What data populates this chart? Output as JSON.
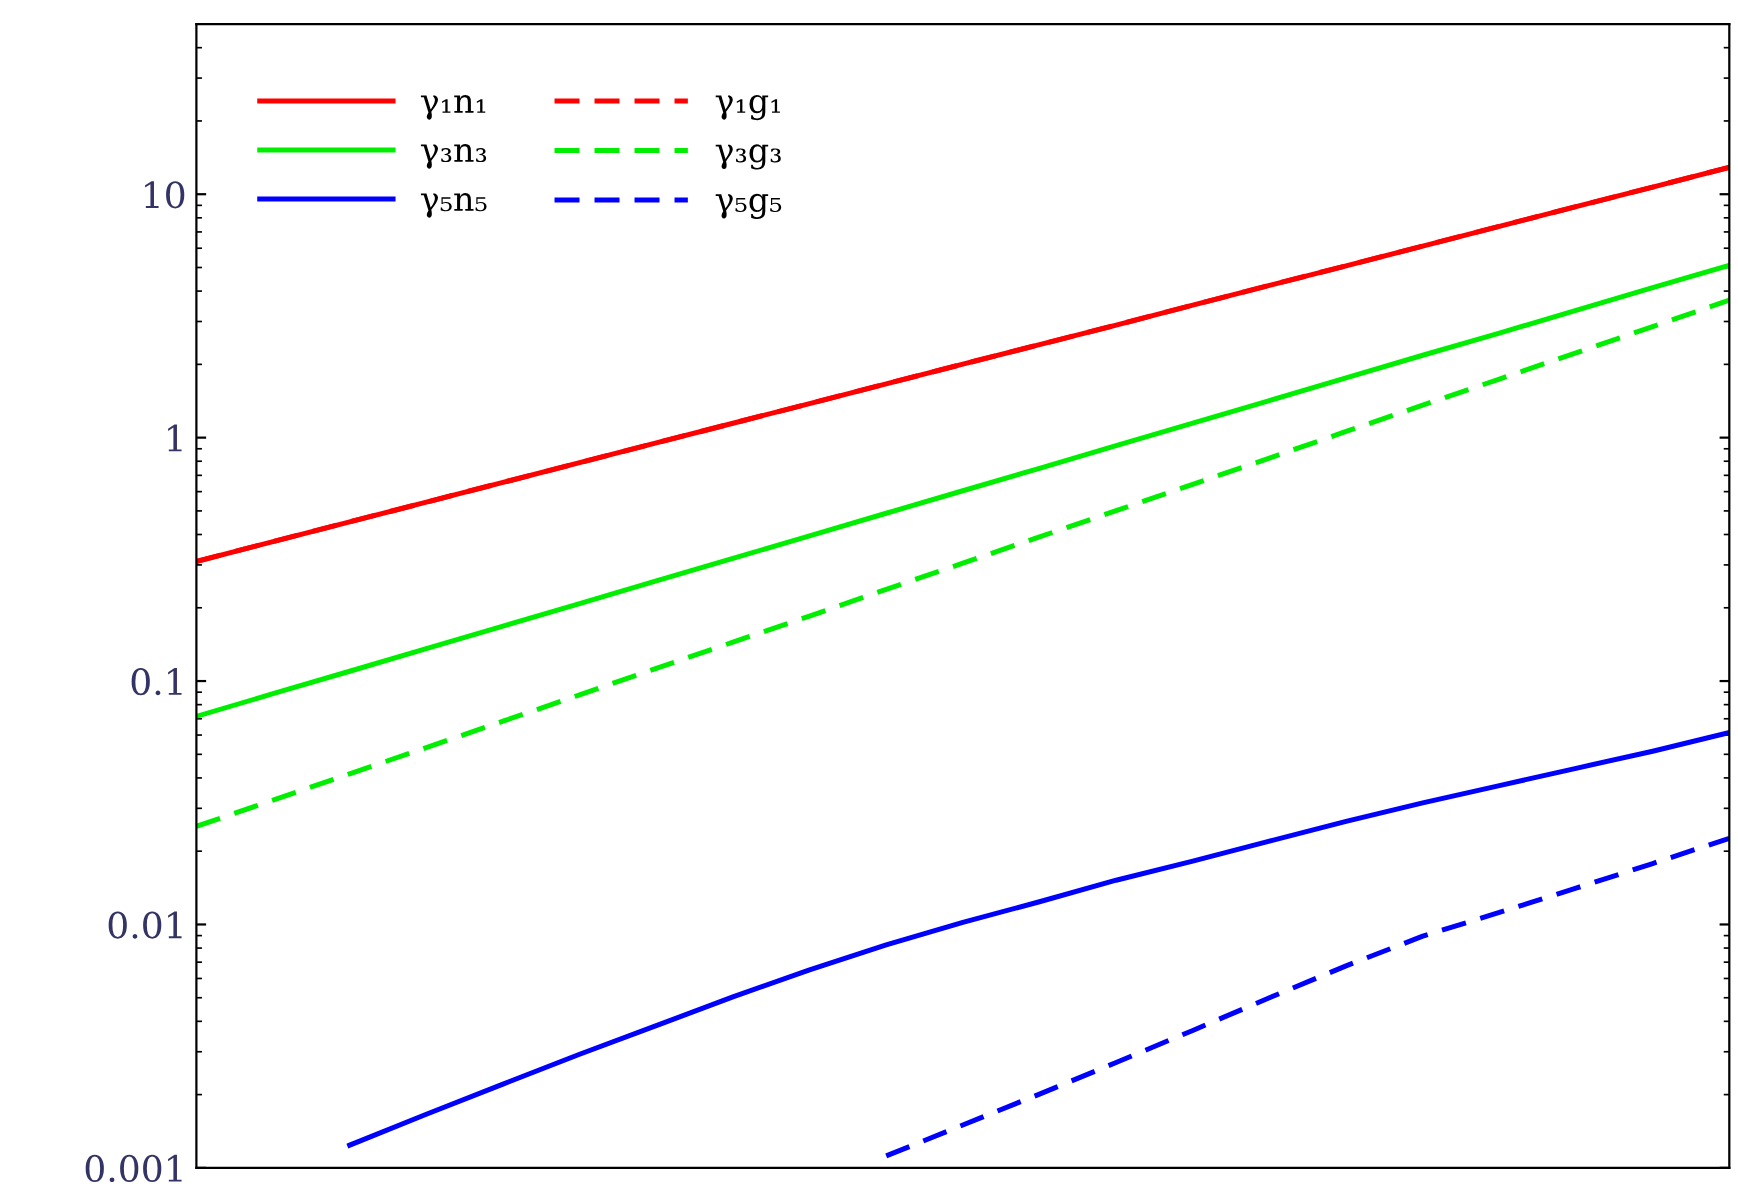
{
  "chart_data": {
    "type": "line",
    "log": "y",
    "tick_labels": "y",
    "grid": false,
    "legend": "top left",
    "marker": "none",
    "categories": [
      null,
      null,
      null,
      null,
      null,
      null,
      null,
      null,
      null,
      null,
      null,
      null,
      null,
      null,
      null,
      null,
      null,
      null,
      null,
      null,
      null
    ],
    "ylim": [
      0.001,
      50
    ],
    "yticks": [
      {
        "value": 0.001,
        "label": "0.001"
      },
      {
        "value": 0.01,
        "label": "0.01"
      },
      {
        "value": 0.1,
        "label": "0.1"
      },
      1,
      10
    ],
    "series": [
      {
        "name": "γ₁n₁",
        "color": "#ff0000",
        "line_style": "solid",
        "values": [
          0.31,
          0.374,
          0.451,
          0.543,
          0.655,
          0.789,
          0.951,
          1.146,
          1.38,
          1.663,
          2.004,
          2.41,
          2.9,
          3.5,
          4.22,
          5.08,
          6.12,
          7.38,
          8.89,
          10.7,
          12.9
        ]
      },
      {
        "name": "γ₃n₃",
        "color": "#00ee00",
        "line_style": "solid",
        "values": [
          0.0716,
          0.0887,
          0.1097,
          0.136,
          0.168,
          0.208,
          0.258,
          0.319,
          0.395,
          0.489,
          0.605,
          0.748,
          0.927,
          1.148,
          1.42,
          1.76,
          2.18,
          2.69,
          3.33,
          4.13,
          5.1
        ]
      },
      {
        "name": "γ₅n₅",
        "color": "#0000ff",
        "line_style": "solid",
        "values": [
          null,
          null,
          0.00124,
          0.00166,
          0.00221,
          0.00293,
          0.00384,
          0.00504,
          0.00651,
          0.00824,
          0.0102,
          0.0124,
          0.0152,
          0.0182,
          0.022,
          0.0265,
          0.0316,
          0.0372,
          0.0438,
          0.0515,
          0.0614
        ]
      },
      {
        "name": "γ₁g₁",
        "color": "#ff0000",
        "line_style": "dashed",
        "values": [
          0.31,
          0.374,
          0.451,
          0.543,
          0.655,
          0.789,
          0.951,
          1.146,
          1.38,
          1.663,
          2.004,
          2.41,
          2.9,
          3.5,
          4.22,
          5.08,
          6.12,
          7.38,
          8.89,
          10.7,
          12.9
        ]
      },
      {
        "name": "γ₃g₃",
        "color": "#00ee00",
        "line_style": "dashed",
        "values": [
          0.0253,
          0.0324,
          0.0416,
          0.0533,
          0.0684,
          0.0878,
          0.1127,
          0.1445,
          0.185,
          0.238,
          0.305,
          0.391,
          0.501,
          0.643,
          0.824,
          1.06,
          1.36,
          1.74,
          2.23,
          2.86,
          3.67
        ]
      },
      {
        "name": "γ₅g₅",
        "color": "#0000ff",
        "line_style": "dashed",
        "values": [
          null,
          null,
          null,
          null,
          null,
          null,
          null,
          null,
          null,
          0.00112,
          0.0015,
          0.00201,
          0.00271,
          0.00367,
          0.005,
          0.00676,
          0.00895,
          0.0112,
          0.0141,
          0.0178,
          0.0226
        ]
      }
    ]
  }
}
